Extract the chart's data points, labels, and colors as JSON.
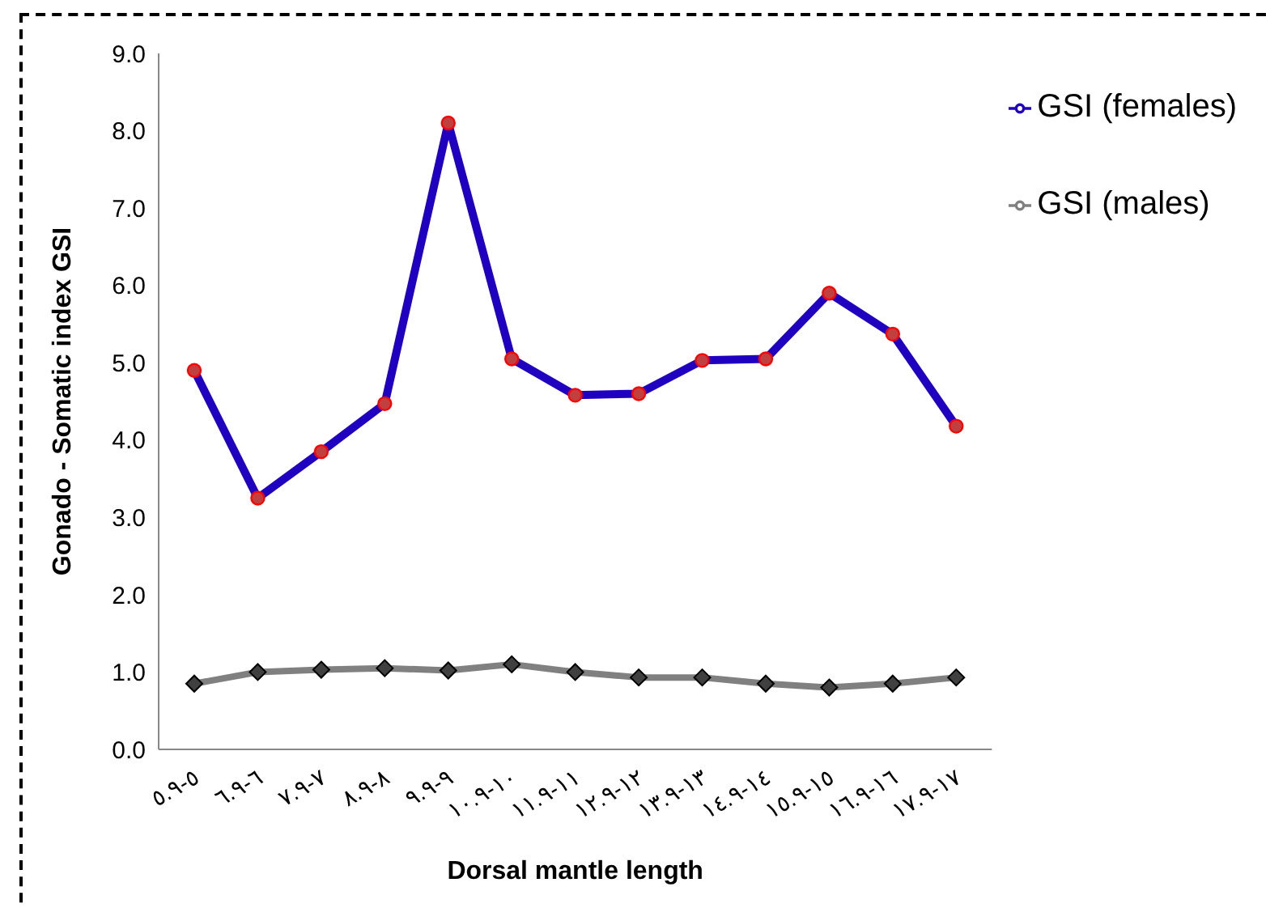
{
  "chart_data": {
    "type": "line",
    "xlabel": "Dorsal mantle length",
    "ylabel": "Gonado - Somatic index GSI",
    "categories": [
      "٥.٩-٥",
      "٦.٩-٦",
      "٧.٩-٧",
      "٨.٩-٨",
      "٩.٩-٩",
      "١٠.٩-١٠",
      "١١.٩-١١",
      "١٢.٩-١٢",
      "١٣.٩-١٣",
      "١٤.٩-١٤",
      "١٥.٩-١٥",
      "١٦.٩-١٦",
      "١٧.٩-١٧"
    ],
    "series": [
      {
        "name": "GSI (males)",
        "color": "#808080",
        "marker": "diamond",
        "values": [
          0.85,
          1.0,
          1.03,
          1.05,
          1.02,
          1.1,
          1.0,
          0.93,
          0.93,
          0.85,
          0.8,
          0.85,
          0.93
        ]
      },
      {
        "name": "GSI (females)",
        "color": "#1f00c0",
        "marker": "circle",
        "values": [
          4.9,
          3.25,
          3.85,
          4.47,
          8.1,
          5.05,
          4.58,
          4.6,
          5.03,
          5.05,
          5.9,
          5.37,
          4.18
        ]
      }
    ],
    "ylim": [
      0,
      9
    ],
    "yticks": [
      {
        "value": 0,
        "label": "0.0"
      },
      {
        "value": 1,
        "label": "1.0"
      },
      {
        "value": 2,
        "label": "2.0"
      },
      {
        "value": 3,
        "label": "3.0"
      },
      {
        "value": 4,
        "label": "4.0"
      },
      {
        "value": 5,
        "label": "5.0"
      },
      {
        "value": 6,
        "label": "6.0"
      },
      {
        "value": 7,
        "label": "7.0"
      },
      {
        "value": 8,
        "label": "8.0"
      },
      {
        "value": 9,
        "label": "9.0"
      }
    ],
    "grid": false,
    "legend": "top right",
    "line_style": "solid"
  }
}
